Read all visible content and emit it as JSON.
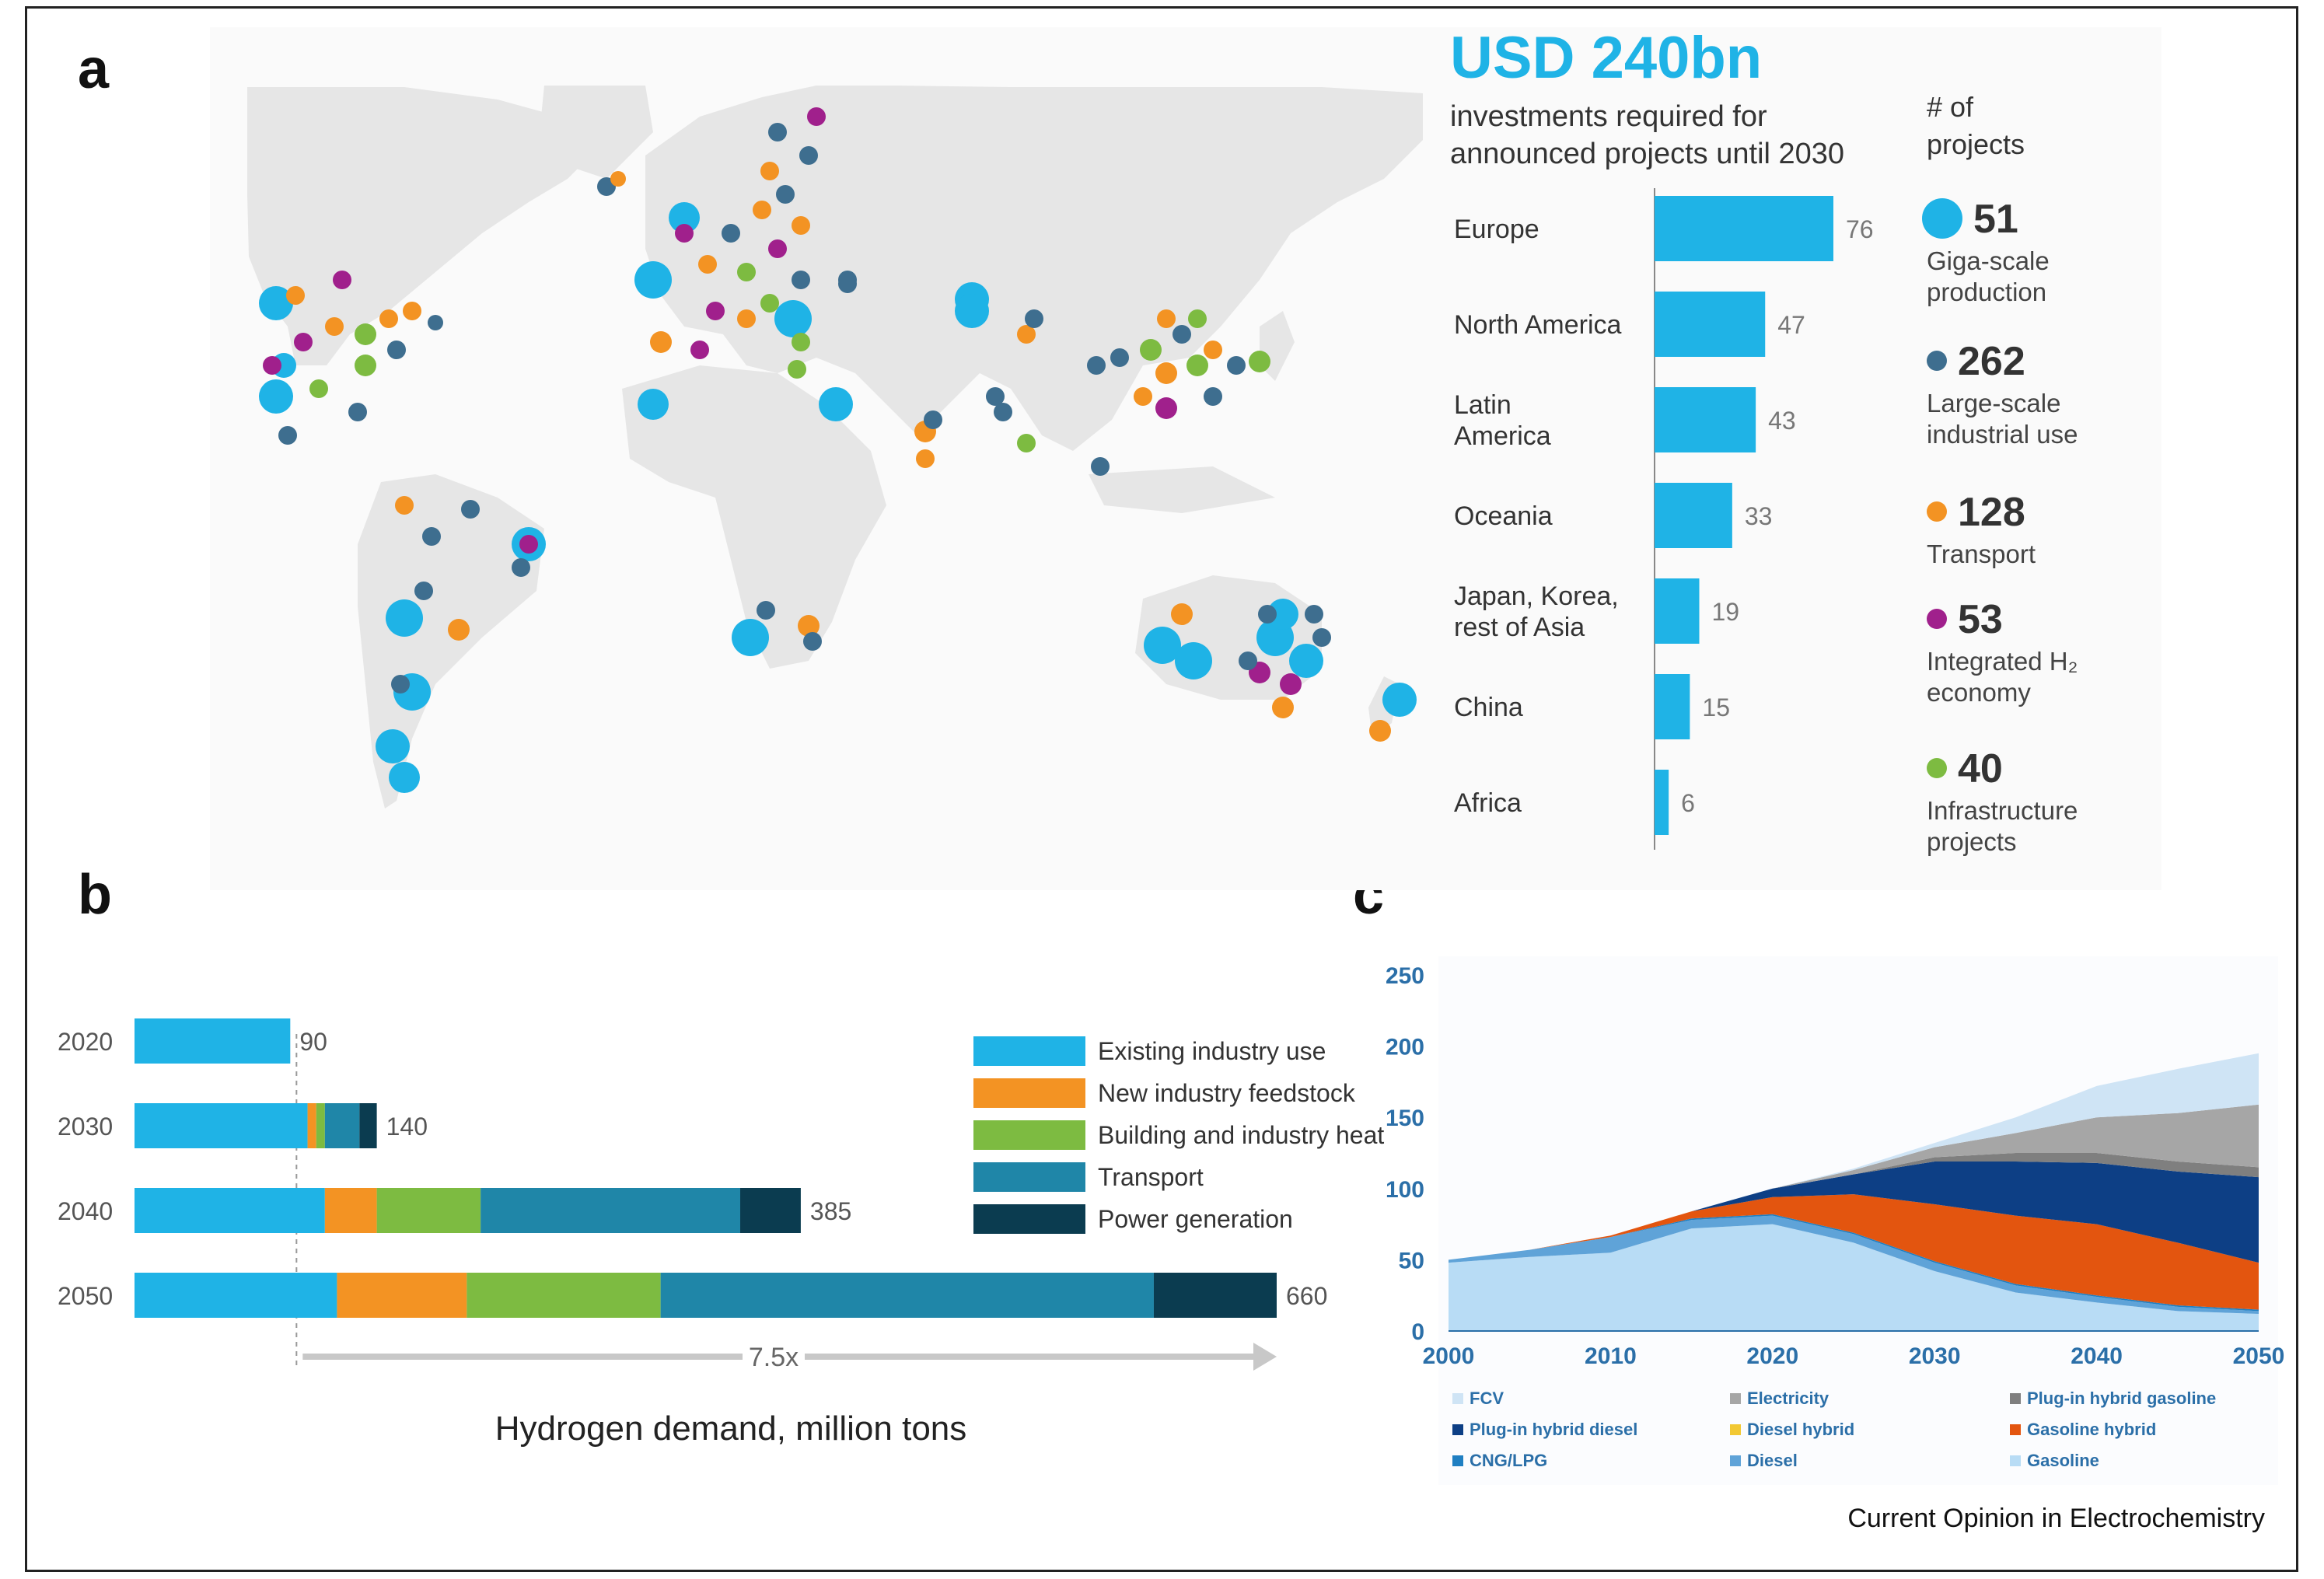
{
  "panels": {
    "a": "a",
    "b": "b",
    "c": "c"
  },
  "footer": "Current Opinion in Electrochemistry",
  "colors": {
    "cyan": "#1fb3e6",
    "slate": "#3e6e8f",
    "orange": "#f39323",
    "purple": "#a0208c",
    "green": "#7dbb41",
    "map_land": "#e6e6e6"
  },
  "chart_data": [
    {
      "panel": "a",
      "type": "bar",
      "orientation": "horizontal",
      "headline": "USD 240bn",
      "subtitle": "investments required for announced projects until 2030",
      "categories": [
        "Europe",
        "North America",
        "Latin America",
        "Oceania",
        "Japan, Korea, rest of Asia",
        "China",
        "Africa"
      ],
      "category_lines": [
        [
          "Europe"
        ],
        [
          "North America"
        ],
        [
          "Latin",
          "America"
        ],
        [
          "Oceania"
        ],
        [
          "Japan, Korea,",
          "rest of Asia"
        ],
        [
          "China"
        ],
        [
          "Africa"
        ]
      ],
      "values": [
        76,
        47,
        43,
        33,
        19,
        15,
        6
      ],
      "value_labels": [
        "76",
        "47",
        "43",
        "33",
        "19",
        "15",
        "6"
      ],
      "legend_title": "# of projects",
      "legend": [
        {
          "count": "51",
          "label_lines": [
            "Giga-scale",
            "production"
          ],
          "color": "#1fb3e6",
          "size": "large"
        },
        {
          "count": "262",
          "label_lines": [
            "Large-scale",
            "industrial use"
          ],
          "color": "#3e6e8f",
          "size": "small"
        },
        {
          "count": "128",
          "label_lines": [
            "Transport"
          ],
          "color": "#f39323",
          "size": "small"
        },
        {
          "count": "53",
          "label_lines": [
            "Integrated H₂",
            "economy"
          ],
          "color": "#a0208c",
          "size": "small"
        },
        {
          "count": "40",
          "label_lines": [
            "Infrastructure",
            "projects"
          ],
          "color": "#7dbb41",
          "size": "small"
        }
      ]
    },
    {
      "panel": "b",
      "type": "bar",
      "orientation": "horizontal-stacked",
      "xlabel": "Hydrogen demand, million tons",
      "categories": [
        "2020",
        "2030",
        "2040",
        "2050"
      ],
      "totals": [
        "90",
        "140",
        "385",
        "660"
      ],
      "series": [
        {
          "name": "Existing industry use",
          "color": "#1fb3e6",
          "values": [
            90,
            100,
            110,
            117
          ]
        },
        {
          "name": "New industry feedstock",
          "color": "#f39323",
          "values": [
            0,
            5,
            30,
            75
          ]
        },
        {
          "name": "Building and industry heat",
          "color": "#7dbb41",
          "values": [
            0,
            5,
            60,
            112
          ]
        },
        {
          "name": "Transport",
          "color": "#1f86a8",
          "values": [
            0,
            20,
            150,
            285
          ]
        },
        {
          "name": "Power generation",
          "color": "#0b3c50",
          "values": [
            0,
            10,
            35,
            71
          ]
        }
      ],
      "xlim": [
        0,
        660
      ],
      "annotation": "7.5x"
    },
    {
      "panel": "c",
      "type": "area",
      "x": [
        2000,
        2005,
        2010,
        2015,
        2020,
        2025,
        2030,
        2035,
        2040,
        2045,
        2050
      ],
      "xticks": [
        "2000",
        "2010",
        "2020",
        "2030",
        "2040",
        "2050"
      ],
      "yticks": [
        "0",
        "50",
        "100",
        "150",
        "200",
        "250"
      ],
      "ylim": [
        0,
        250
      ],
      "xlim": [
        2000,
        2050
      ],
      "series": [
        {
          "name": "Gasoline",
          "color": "#b8dcf5",
          "values": [
            48,
            52,
            55,
            72,
            75,
            62,
            42,
            27,
            20,
            14,
            12
          ]
        },
        {
          "name": "Diesel",
          "color": "#5fa3d8",
          "values": [
            2,
            5,
            11,
            6,
            6,
            6,
            6,
            5,
            4,
            3,
            2
          ]
        },
        {
          "name": "CNG/LPG",
          "color": "#1f7fc2",
          "values": [
            0,
            0,
            0,
            1,
            1,
            1,
            1,
            1,
            1,
            1,
            1
          ]
        },
        {
          "name": "Gasoline hybrid",
          "color": "#e3550f",
          "values": [
            0,
            0,
            1,
            5,
            12,
            27,
            40,
            48,
            50,
            44,
            33
          ]
        },
        {
          "name": "Diesel hybrid",
          "color": "#f2c833",
          "values": [
            0,
            0,
            0,
            0,
            0,
            0,
            0,
            0,
            0,
            0,
            0
          ]
        },
        {
          "name": "Plug-in hybrid diesel",
          "color": "#0d3f85",
          "values": [
            0,
            0,
            0,
            0,
            6,
            14,
            30,
            38,
            43,
            50,
            60
          ]
        },
        {
          "name": "Plug-in hybrid gasoline",
          "color": "#7f7f7f",
          "values": [
            0,
            0,
            0,
            0,
            0,
            0,
            3,
            6,
            7,
            7,
            7
          ]
        },
        {
          "name": "Electricity",
          "color": "#a6a6a6",
          "values": [
            0,
            0,
            0,
            0,
            0,
            3,
            7,
            14,
            25,
            34,
            44
          ]
        },
        {
          "name": "FCV",
          "color": "#cfe4f5",
          "values": [
            0,
            0,
            0,
            0,
            0,
            1,
            3,
            11,
            22,
            31,
            36
          ]
        }
      ],
      "legend_rows": [
        [
          "FCV",
          "Electricity",
          "Plug-in hybrid gasoline"
        ],
        [
          "Plug-in hybrid diesel",
          "Diesel hybrid",
          "Gasoline hybrid"
        ],
        [
          "CNG/LPG",
          "Diesel",
          "Gasoline"
        ]
      ]
    }
  ]
}
